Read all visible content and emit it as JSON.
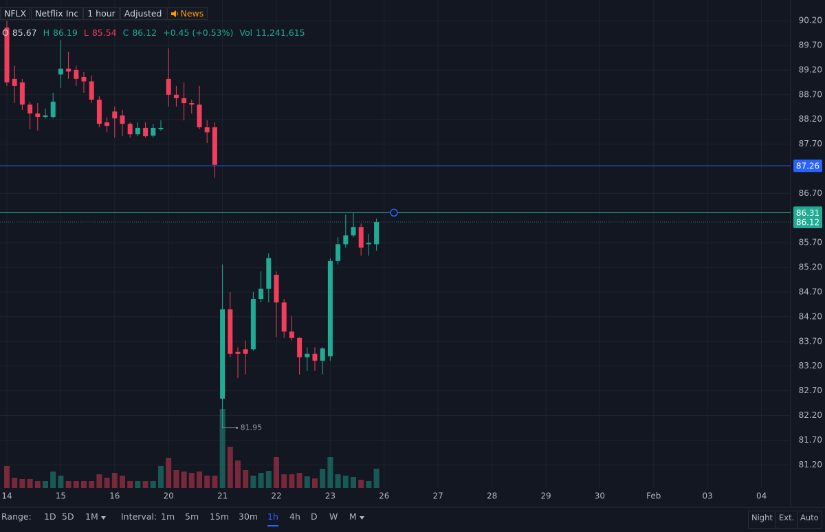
{
  "header": {
    "symbol": "NFLX",
    "name": "Netflix Inc",
    "interval": "1 hour",
    "adjustment": "Adjusted",
    "news": "News",
    "o_label": "O",
    "h_label": "H",
    "l_label": "L",
    "c_label": "C",
    "change": "+0.45 (+0.53%)",
    "vol_label": "Vol",
    "volume_label": "11,241,615"
  },
  "chart_data": {
    "type": "candlestick",
    "categories": [
      "14",
      null,
      null,
      null,
      null,
      null,
      null,
      "15",
      null,
      null,
      null,
      null,
      null,
      null,
      "16",
      null,
      null,
      null,
      null,
      null,
      null,
      "20",
      null,
      null,
      null,
      null,
      null,
      null,
      "21",
      null,
      null,
      null,
      null,
      null,
      null,
      "22",
      null,
      null,
      null,
      null,
      null,
      null,
      "23",
      null,
      null,
      null,
      null,
      null,
      null
    ],
    "future_dates": [
      "26",
      "27",
      "28",
      "29",
      "30",
      "Feb",
      "03",
      "04"
    ],
    "open": [
      90.06,
      89.02,
      88.95,
      88.5,
      88.32,
      88.25,
      88.25,
      89.11,
      89.23,
      89.2,
      89.06,
      88.97,
      88.6,
      88.14,
      88.36,
      88.28,
      88.11,
      87.9,
      88.03,
      87.87,
      88.0,
      89.02,
      88.7,
      88.63,
      88.53,
      88.5,
      88.04,
      88.04,
      82.54,
      84.35,
      83.49,
      83.54,
      83.54,
      84.56,
      84.77,
      85.05,
      84.49,
      83.9,
      83.77,
      83.38,
      83.45,
      83.31,
      83.4,
      85.33,
      85.67,
      85.85,
      86.02,
      85.67,
      85.67
    ],
    "high": [
      90.2,
      89.29,
      89.02,
      88.56,
      88.53,
      88.42,
      88.74,
      89.81,
      89.57,
      89.29,
      89.16,
      89.09,
      88.67,
      88.25,
      88.46,
      88.39,
      88.14,
      88.14,
      88.14,
      88.11,
      88.18,
      89.64,
      88.88,
      88.95,
      88.6,
      88.88,
      88.18,
      88.14,
      85.26,
      84.7,
      83.58,
      83.72,
      84.7,
      85.12,
      85.49,
      85.12,
      84.56,
      84.21,
      83.79,
      83.58,
      83.58,
      83.58,
      85.39,
      85.81,
      86.27,
      86.3,
      86.09,
      85.88,
      86.19
    ],
    "low": [
      88.88,
      88.53,
      88.39,
      88.0,
      87.97,
      88.22,
      88.22,
      88.84,
      89.02,
      88.88,
      88.74,
      88.53,
      88.04,
      87.94,
      87.83,
      87.86,
      87.83,
      87.86,
      87.83,
      87.83,
      87.97,
      88.46,
      88.46,
      88.18,
      88.32,
      88.0,
      87.72,
      87.02,
      81.95,
      83.38,
      82.96,
      83.03,
      83.51,
      84.49,
      84.49,
      83.79,
      83.77,
      83.72,
      83.03,
      83.1,
      83.1,
      83.03,
      83.31,
      85.26,
      85.6,
      85.81,
      85.44,
      85.44,
      85.54
    ],
    "close": [
      88.95,
      88.88,
      88.5,
      88.32,
      88.25,
      88.28,
      88.56,
      89.23,
      89.17,
      89.02,
      88.97,
      88.6,
      88.11,
      88.07,
      88.22,
      88.11,
      87.9,
      88.03,
      87.86,
      88.03,
      88.03,
      88.7,
      88.63,
      88.53,
      88.5,
      88.04,
      87.94,
      87.28,
      84.35,
      83.45,
      83.45,
      83.45,
      84.56,
      84.77,
      85.39,
      84.49,
      83.9,
      83.77,
      83.38,
      83.45,
      83.31,
      83.56,
      85.33,
      85.67,
      85.85,
      86.02,
      85.6,
      85.7,
      86.12
    ],
    "volume": [
      12800000,
      6000000,
      5200000,
      5200000,
      4000000,
      4000000,
      9600000,
      7200000,
      4000000,
      4000000,
      4000000,
      4000000,
      8000000,
      6000000,
      8800000,
      7200000,
      4000000,
      4000000,
      4000000,
      4000000,
      12800000,
      17600000,
      10400000,
      9600000,
      8800000,
      9600000,
      7200000,
      7200000,
      46000000,
      24000000,
      16000000,
      10400000,
      7200000,
      8800000,
      10000000,
      18000000,
      8000000,
      8000000,
      8800000,
      6800000,
      5600000,
      11200000,
      18000000,
      8000000,
      7200000,
      6400000,
      4800000,
      4000000,
      11241615
    ],
    "up_color": "#22ab94",
    "down_color": "#f23d5c",
    "ylim": [
      80.73,
      90.62
    ],
    "yticks": [
      {
        "value": 90.2,
        "label": "90.20"
      },
      {
        "value": 89.7,
        "label": "89.70"
      },
      {
        "value": 89.2,
        "label": "89.20"
      },
      {
        "value": 88.7,
        "label": "88.70"
      },
      {
        "value": 88.2,
        "label": "88.20"
      },
      {
        "value": 87.7,
        "label": "87.70"
      },
      {
        "value": 86.7,
        "label": "86.70"
      },
      {
        "value": 85.7,
        "label": "85.70"
      },
      {
        "value": 85.2,
        "label": "85.20"
      },
      {
        "value": 84.7,
        "label": "84.70"
      },
      {
        "value": 84.2,
        "label": "84.20"
      },
      {
        "value": 83.7,
        "label": "83.70"
      },
      {
        "value": 83.2,
        "label": "83.20"
      },
      {
        "value": 82.7,
        "label": "82.70"
      },
      {
        "value": 82.2,
        "label": "82.20"
      },
      {
        "value": 81.7,
        "label": "81.70"
      },
      {
        "value": 81.2,
        "label": "81.20"
      }
    ],
    "grid": true,
    "price_lines": [
      {
        "value": 87.26,
        "color": "#2962ff"
      },
      {
        "value": 86.31,
        "color": "#22ab94"
      }
    ]
  },
  "toolbar": {
    "range_label": "Range:",
    "ranges": [
      "1D",
      "5D",
      "1M"
    ],
    "interval_label": "Interval:",
    "intervals": [
      "1m",
      "5m",
      "15m",
      "30m",
      "1h",
      "4h",
      "D",
      "W",
      "M"
    ],
    "selected_interval": "1h",
    "options": [
      "Night",
      "Ext.",
      "Auto"
    ]
  }
}
